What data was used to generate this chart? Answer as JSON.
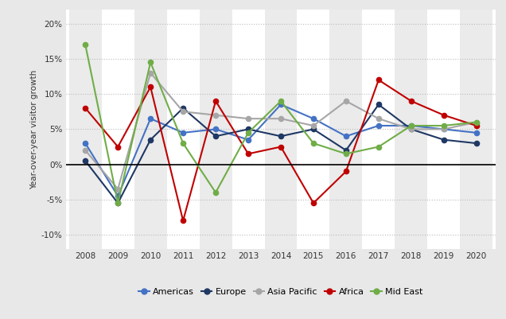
{
  "years": [
    2008,
    2009,
    2010,
    2011,
    2012,
    2013,
    2014,
    2015,
    2016,
    2017,
    2018,
    2019,
    2020
  ],
  "series": {
    "Americas": [
      3.0,
      -4.5,
      6.5,
      4.5,
      5.0,
      3.5,
      8.5,
      6.5,
      4.0,
      5.5,
      5.5,
      5.0,
      4.5
    ],
    "Europe": [
      0.5,
      -5.5,
      3.5,
      8.0,
      4.0,
      5.0,
      4.0,
      5.0,
      2.0,
      8.5,
      5.0,
      3.5,
      3.0
    ],
    "Asia Pacific": [
      2.0,
      -3.5,
      13.0,
      7.5,
      7.0,
      6.5,
      6.5,
      5.5,
      9.0,
      6.5,
      5.0,
      5.0,
      6.0
    ],
    "Africa": [
      8.0,
      2.5,
      11.0,
      -8.0,
      9.0,
      1.5,
      2.5,
      -5.5,
      -1.0,
      12.0,
      9.0,
      7.0,
      5.5
    ],
    "Mid East": [
      17.0,
      -5.5,
      14.5,
      3.0,
      -4.0,
      4.5,
      9.0,
      3.0,
      1.5,
      2.5,
      5.5,
      5.5,
      6.0
    ]
  },
  "colors": {
    "Americas": "#4472c4",
    "Europe": "#1f3864",
    "Asia Pacific": "#a6a6a6",
    "Africa": "#c00000",
    "Mid East": "#70ad47"
  },
  "ylabel": "Year-over-year visitor growth",
  "ylim": [
    -12,
    22
  ],
  "yticks": [
    -10,
    -5,
    0,
    5,
    10,
    15,
    20
  ],
  "ytick_labels": [
    "-10%",
    "-5%",
    "0%",
    "5%",
    "10%",
    "15%",
    "20%"
  ],
  "background_color": "#e8e8e8",
  "plot_bg_color": "#ffffff",
  "grid_color": "#bbbbbb",
  "linewidth": 1.5,
  "markersize": 4.5
}
